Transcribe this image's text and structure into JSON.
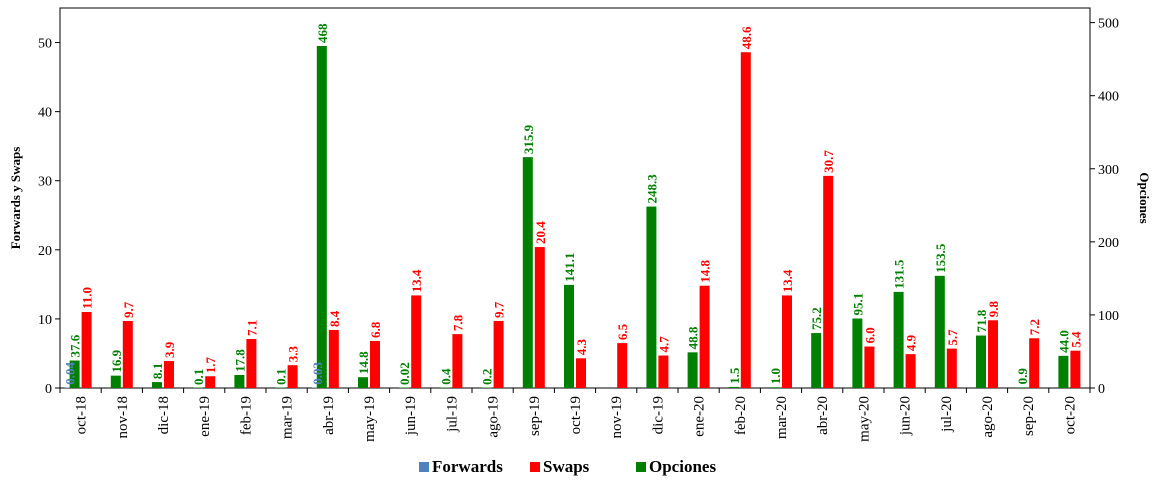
{
  "chart_data": {
    "type": "bar",
    "categories": [
      "oct-18",
      "nov-18",
      "dic-18",
      "ene-19",
      "feb-19",
      "mar-19",
      "abr-19",
      "may-19",
      "jun-19",
      "jul-19",
      "ago-19",
      "sep-19",
      "oct-19",
      "nov-19",
      "dic-19",
      "ene-20",
      "feb-20",
      "mar-20",
      "abr-20",
      "may-20",
      "jun-20",
      "jul-20",
      "ago-20",
      "sep-20",
      "oct-20"
    ],
    "ylabel_left": "Forwards y Swaps",
    "ylabel_right": "Opciones",
    "ylim_left": [
      0,
      55
    ],
    "ylim_right": [
      0,
      520
    ],
    "yticks_left": [
      0,
      10,
      20,
      30,
      40,
      50
    ],
    "yticks_right": [
      0,
      100,
      200,
      300,
      400,
      500
    ],
    "legend_position": "bottom",
    "series": [
      {
        "name": "Forwards",
        "axis": "left",
        "color": "#4f81bd",
        "values": [
          0.04,
          null,
          null,
          null,
          null,
          null,
          0.03,
          null,
          null,
          null,
          null,
          null,
          null,
          null,
          null,
          null,
          null,
          null,
          null,
          null,
          null,
          null,
          null,
          null,
          null
        ],
        "labels": [
          "0.04",
          "",
          "",
          "",
          "",
          "",
          "0.03",
          "",
          "",
          "",
          "",
          "",
          "",
          "",
          "",
          "",
          "",
          "",
          "",
          "",
          "",
          "",
          "",
          "",
          ""
        ]
      },
      {
        "name": "Swaps",
        "axis": "left",
        "color": "#ff0000",
        "values": [
          11.0,
          9.7,
          3.9,
          1.7,
          7.1,
          3.3,
          8.4,
          6.8,
          13.4,
          7.8,
          9.7,
          20.4,
          4.3,
          6.5,
          4.7,
          14.8,
          48.6,
          13.4,
          30.7,
          6.0,
          4.9,
          5.7,
          9.8,
          7.2,
          5.4
        ],
        "labels": [
          "11.0",
          "9.7",
          "3.9",
          "1.7",
          "7.1",
          "3.3",
          "8.4",
          "6.8",
          "13.4",
          "7.8",
          "9.7",
          "20.4",
          "4.3",
          "6.5",
          "4.7",
          "14.8",
          "48.6",
          "13.4",
          "30.7",
          "6.0",
          "4.9",
          "5.7",
          "9.8",
          "7.2",
          "5.4"
        ]
      },
      {
        "name": "Opciones",
        "axis": "right",
        "color": "#008000",
        "values": [
          37.6,
          16.9,
          8.1,
          0.1,
          17.8,
          0.1,
          468,
          14.8,
          0.02,
          0.4,
          0.2,
          315.9,
          141.1,
          null,
          248.3,
          48.8,
          1.5,
          1.0,
          75.2,
          95.1,
          131.5,
          153.5,
          71.8,
          0.9,
          44.0
        ],
        "labels": [
          "37.6",
          "16.9",
          "8.1",
          "0.1",
          "17.8",
          "0.1",
          "468",
          "14.8",
          "0.02",
          "0.4",
          "0.2",
          "315.9",
          "141.1",
          "",
          "248.3",
          "48.8",
          "1.5",
          "1.0",
          "75.2",
          "95.1",
          "131.5",
          "153.5",
          "71.8",
          "0.9",
          "44.0"
        ]
      }
    ]
  }
}
